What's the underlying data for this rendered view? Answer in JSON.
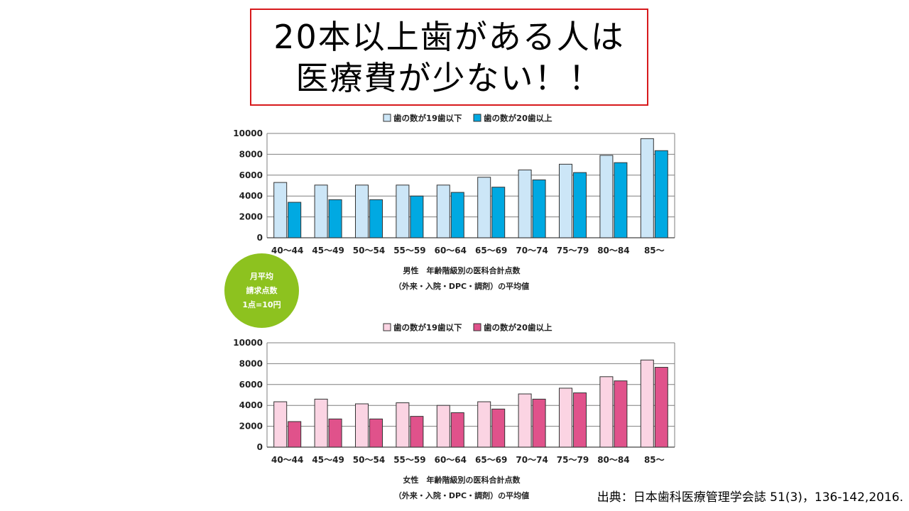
{
  "title": {
    "line1": "20本以上歯がある人は",
    "line2": "医療費が少ない！！"
  },
  "note": {
    "line1": "月平均",
    "line2": "請求点数",
    "line3": "1点=10円"
  },
  "source": "出典：日本歯科医療管理学会誌 51(3)，136-142,2016.",
  "colors": {
    "male_19": "#cce6f7",
    "male_20": "#00a9e2",
    "female_19": "#fbd4e3",
    "female_20": "#e0528b",
    "note_circle": "#8dc21f",
    "title_border": "#d7191c"
  },
  "chart_data": [
    {
      "type": "bar",
      "categories": [
        "40～44",
        "45～49",
        "50～54",
        "55～59",
        "60～64",
        "65～69",
        "70～74",
        "75～79",
        "80～84",
        "85～"
      ],
      "series": [
        {
          "name": "歯の数が19歯以下",
          "values": [
            5300,
            5050,
            5050,
            5050,
            5050,
            5800,
            6500,
            7050,
            7900,
            9500
          ]
        },
        {
          "name": "歯の数が20歯以上",
          "values": [
            3400,
            3650,
            3650,
            4000,
            4350,
            4850,
            5550,
            6250,
            7200,
            8350
          ]
        }
      ],
      "ylim": [
        0,
        10000
      ],
      "yticks": [
        0,
        2000,
        4000,
        6000,
        8000,
        10000
      ],
      "grid": true,
      "legend": "top",
      "caption": [
        "男性　年齢階級別の医科合計点数",
        "（外来・入院・DPC・調剤）の平均値"
      ]
    },
    {
      "type": "bar",
      "categories": [
        "40～44",
        "45～49",
        "50～54",
        "55～59",
        "60～64",
        "65～69",
        "70～74",
        "75～79",
        "80～84",
        "85～"
      ],
      "series": [
        {
          "name": "歯の数が19歯以下",
          "values": [
            4350,
            4600,
            4150,
            4250,
            4000,
            4350,
            5100,
            5650,
            6750,
            8350
          ]
        },
        {
          "name": "歯の数が20歯以上",
          "values": [
            2450,
            2700,
            2700,
            2950,
            3300,
            3650,
            4600,
            5200,
            6350,
            7650
          ]
        }
      ],
      "ylim": [
        0,
        10000
      ],
      "yticks": [
        0,
        2000,
        4000,
        6000,
        8000,
        10000
      ],
      "grid": true,
      "legend": "top",
      "caption": [
        "女性　年齢階級別の医科合計点数",
        "（外来・入院・DPC・調剤）の平均値"
      ]
    }
  ]
}
